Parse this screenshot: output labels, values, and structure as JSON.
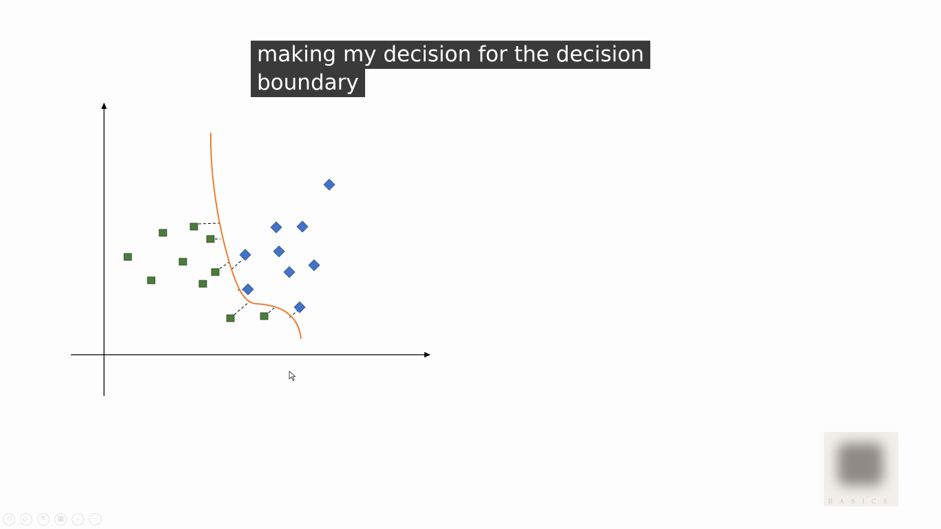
{
  "caption": {
    "line1": "making my decision for the decision",
    "line2": "boundary"
  },
  "colors": {
    "class_square": "#4a7d3a",
    "class_diamond": "#4472c4",
    "boundary": "#ed7d31",
    "axes": "#000000",
    "caption_bg": "#3a3a3a"
  },
  "logo": {
    "wordmark": "BASICS"
  },
  "controls": [
    {
      "name": "prev-icon",
      "glyph": "◁"
    },
    {
      "name": "next-icon",
      "glyph": "▷"
    },
    {
      "name": "pen-icon",
      "glyph": "✎"
    },
    {
      "name": "slides-icon",
      "glyph": "▦"
    },
    {
      "name": "zoom-icon",
      "glyph": "⌕"
    },
    {
      "name": "more-icon",
      "glyph": "⋯"
    }
  ]
}
